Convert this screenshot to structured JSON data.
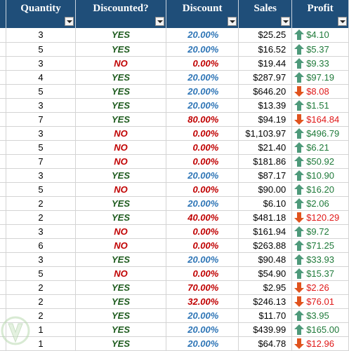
{
  "headers": {
    "quantity": "Quantity",
    "discounted": "Discounted?",
    "discount": "Discount",
    "sales": "Sales",
    "profit": "Profit"
  },
  "colors": {
    "header_bg": "#1f4e79",
    "yes": "#1f5c1f",
    "no": "#c00000",
    "discount_blue": "#2e75b6",
    "profit_up": "#1f7a3a",
    "profit_down": "#e01818",
    "arrow_up": "#4e9a7a",
    "arrow_down": "#e0531e"
  },
  "rows": [
    {
      "quantity": "3",
      "discounted": "YES",
      "discount": "20.00%",
      "sales": "$25.25",
      "profit": "$4.10",
      "trend": "up"
    },
    {
      "quantity": "5",
      "discounted": "YES",
      "discount": "20.00%",
      "sales": "$16.52",
      "profit": "$5.37",
      "trend": "up"
    },
    {
      "quantity": "3",
      "discounted": "NO",
      "discount": "0.00%",
      "sales": "$19.44",
      "profit": "$9.33",
      "trend": "up"
    },
    {
      "quantity": "4",
      "discounted": "YES",
      "discount": "20.00%",
      "sales": "$287.97",
      "profit": "$97.19",
      "trend": "up"
    },
    {
      "quantity": "5",
      "discounted": "YES",
      "discount": "20.00%",
      "sales": "$646.20",
      "profit": "$8.08",
      "trend": "down"
    },
    {
      "quantity": "3",
      "discounted": "YES",
      "discount": "20.00%",
      "sales": "$13.39",
      "profit": "$1.51",
      "trend": "up"
    },
    {
      "quantity": "7",
      "discounted": "YES",
      "discount": "80.00%",
      "sales": "$94.19",
      "profit": "$164.84",
      "trend": "down"
    },
    {
      "quantity": "3",
      "discounted": "NO",
      "discount": "0.00%",
      "sales": "$1,103.97",
      "profit": "$496.79",
      "trend": "up"
    },
    {
      "quantity": "5",
      "discounted": "NO",
      "discount": "0.00%",
      "sales": "$21.40",
      "profit": "$6.21",
      "trend": "up"
    },
    {
      "quantity": "7",
      "discounted": "NO",
      "discount": "0.00%",
      "sales": "$181.86",
      "profit": "$50.92",
      "trend": "up"
    },
    {
      "quantity": "3",
      "discounted": "YES",
      "discount": "20.00%",
      "sales": "$87.17",
      "profit": "$10.90",
      "trend": "up"
    },
    {
      "quantity": "5",
      "discounted": "NO",
      "discount": "0.00%",
      "sales": "$90.00",
      "profit": "$16.20",
      "trend": "up"
    },
    {
      "quantity": "2",
      "discounted": "YES",
      "discount": "20.00%",
      "sales": "$6.10",
      "profit": "$2.06",
      "trend": "up"
    },
    {
      "quantity": "2",
      "discounted": "YES",
      "discount": "40.00%",
      "sales": "$481.18",
      "profit": "$120.29",
      "trend": "down"
    },
    {
      "quantity": "3",
      "discounted": "NO",
      "discount": "0.00%",
      "sales": "$161.94",
      "profit": "$9.72",
      "trend": "up"
    },
    {
      "quantity": "6",
      "discounted": "NO",
      "discount": "0.00%",
      "sales": "$263.88",
      "profit": "$71.25",
      "trend": "up"
    },
    {
      "quantity": "3",
      "discounted": "YES",
      "discount": "20.00%",
      "sales": "$90.48",
      "profit": "$33.93",
      "trend": "up"
    },
    {
      "quantity": "5",
      "discounted": "NO",
      "discount": "0.00%",
      "sales": "$54.90",
      "profit": "$15.37",
      "trend": "up"
    },
    {
      "quantity": "2",
      "discounted": "YES",
      "discount": "70.00%",
      "sales": "$2.95",
      "profit": "$2.26",
      "trend": "down"
    },
    {
      "quantity": "2",
      "discounted": "YES",
      "discount": "32.00%",
      "sales": "$246.13",
      "profit": "$76.01",
      "trend": "down"
    },
    {
      "quantity": "2",
      "discounted": "YES",
      "discount": "20.00%",
      "sales": "$11.70",
      "profit": "$3.95",
      "trend": "up"
    },
    {
      "quantity": "1",
      "discounted": "YES",
      "discount": "20.00%",
      "sales": "$439.99",
      "profit": "$165.00",
      "trend": "up"
    },
    {
      "quantity": "1",
      "discounted": "YES",
      "discount": "20.00%",
      "sales": "$64.78",
      "profit": "$12.96",
      "trend": "down"
    }
  ]
}
